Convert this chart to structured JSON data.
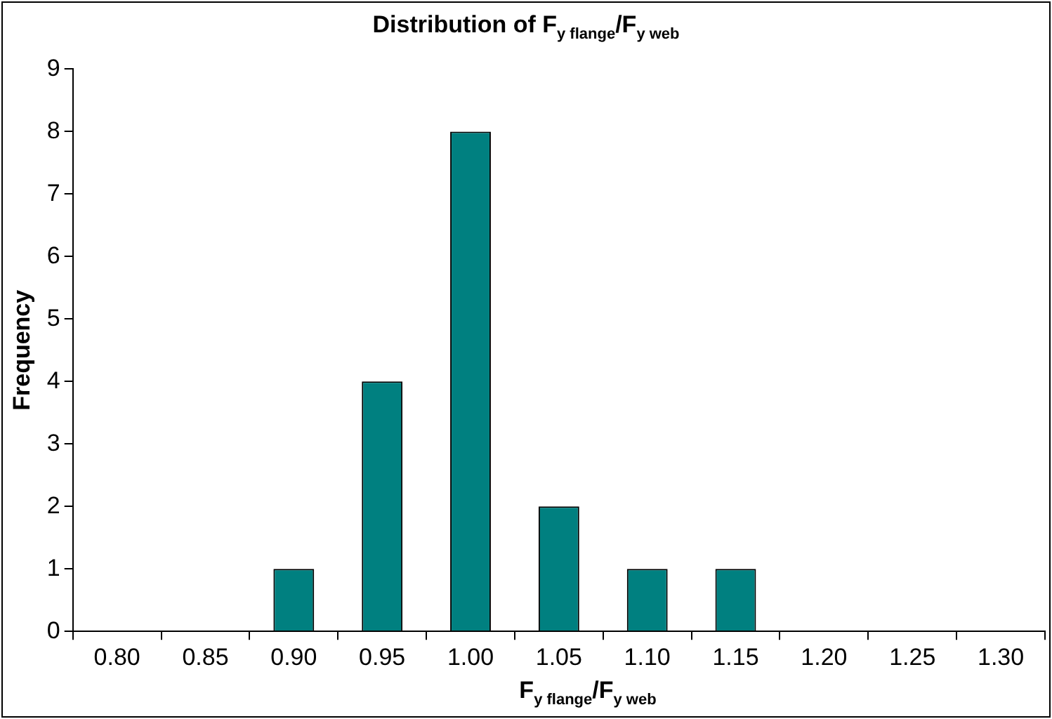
{
  "chart_data": {
    "type": "bar",
    "title": "Distribution of F$_{y flange}$/F$_{y web}$",
    "xlabel": "F$_{y flange}$/F$_{y web}$",
    "ylabel": "Frequency",
    "categories": [
      "0.80",
      "0.85",
      "0.90",
      "0.95",
      "1.00",
      "1.05",
      "1.10",
      "1.15",
      "1.20",
      "1.25",
      "1.30"
    ],
    "values": [
      0,
      0,
      1,
      4,
      8,
      2,
      1,
      1,
      0,
      0,
      0
    ],
    "color": "#008080",
    "ylim": [
      0,
      9
    ],
    "yticks": [
      0,
      1,
      2,
      3,
      4,
      5,
      6,
      7,
      8,
      9
    ],
    "grid": false,
    "legend": false
  }
}
